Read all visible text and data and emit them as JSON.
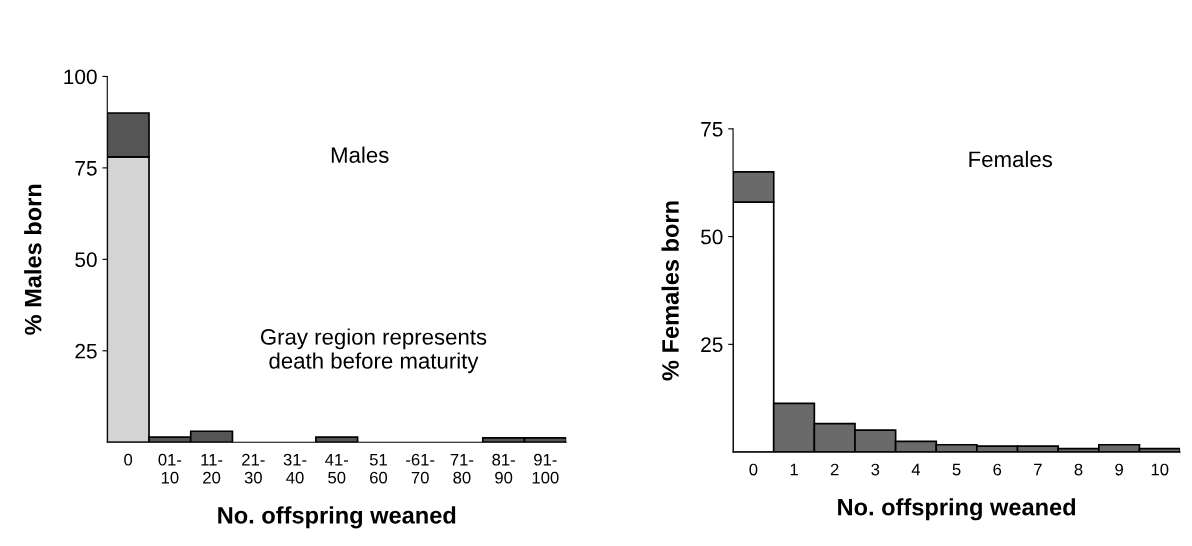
{
  "chart_data": [
    {
      "type": "bar",
      "stacked": true,
      "ylabel": "% Males born",
      "xlabel": "No. offspring weaned",
      "categories": [
        "0",
        "01-\n10",
        "11-\n20",
        "21-\n30",
        "31-\n40",
        "41-\n50",
        "51\n60",
        "-61-\n70",
        "71-\n80",
        "81-\n90",
        "91-\n100"
      ],
      "series": [
        {
          "color": "#d4d4d4",
          "values": [
            78,
            null,
            null,
            null,
            null,
            null,
            null,
            null,
            null,
            null,
            null
          ]
        },
        {
          "color": "#555555",
          "values": [
            12,
            1.4,
            3,
            0,
            0,
            1.4,
            0,
            0,
            0,
            1.2,
            1.2
          ]
        }
      ],
      "ylim": [
        0,
        100
      ],
      "yticks": [
        25,
        50,
        75,
        100
      ],
      "grid": false,
      "legend": false,
      "annotations": [
        "Males",
        "Gray region represents\ndeath before maturity"
      ]
    },
    {
      "type": "bar",
      "stacked": true,
      "ylabel": "% Females born",
      "xlabel": "No. offspring weaned",
      "categories": [
        "0",
        "1",
        "2",
        "3",
        "4",
        "5",
        "6",
        "7",
        "8",
        "9",
        "10"
      ],
      "series": [
        {
          "color": "#ffffff",
          "values": [
            58,
            null,
            null,
            null,
            null,
            null,
            null,
            null,
            null,
            null,
            null
          ]
        },
        {
          "color": "#6a6a6a",
          "values": [
            7,
            11.3,
            6.6,
            5.1,
            2.5,
            1.7,
            1.4,
            1.4,
            0.8,
            1.7,
            0.8
          ]
        }
      ],
      "ylim": [
        0,
        75
      ],
      "yticks": [
        25,
        50,
        75
      ],
      "grid": false,
      "legend": false,
      "annotations": [
        "Females"
      ]
    }
  ]
}
